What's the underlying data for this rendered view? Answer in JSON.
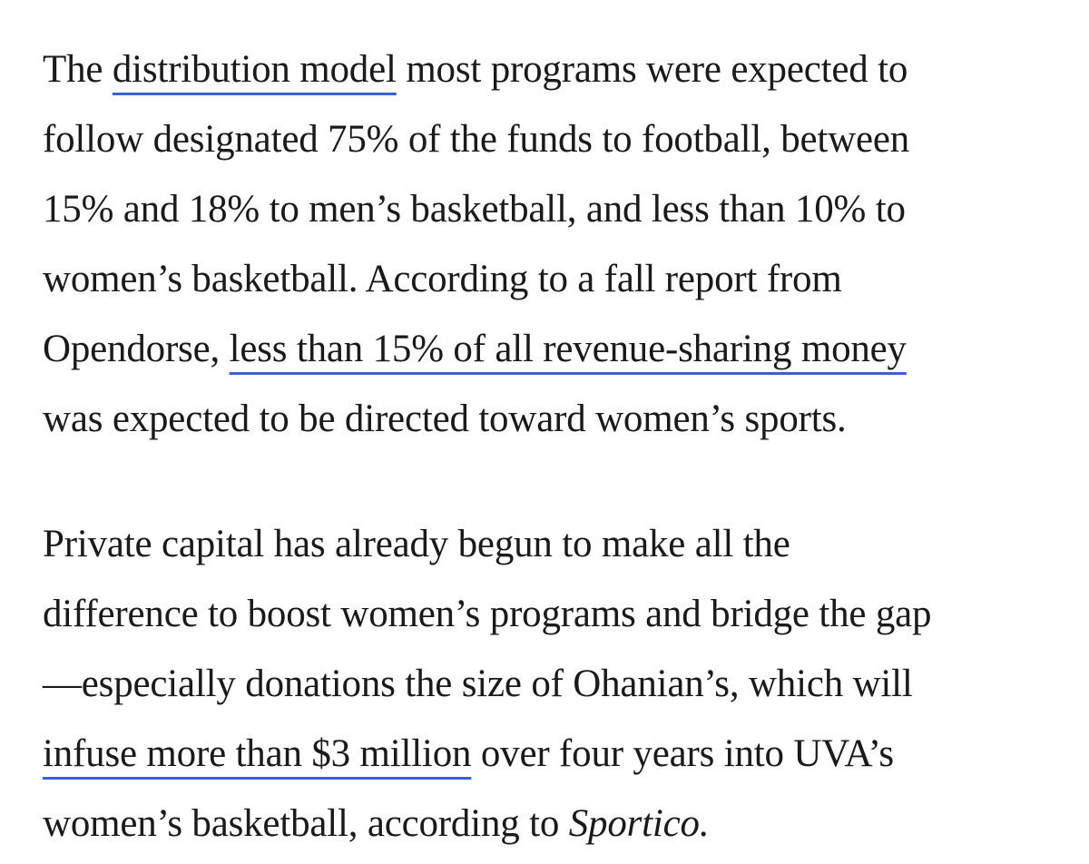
{
  "paragraphs": [
    {
      "lines": [
        [
          "The",
          "distribution model",
          "most programs were expected to"
        ],
        [
          "follow designated 75% of the funds to football, between"
        ],
        [
          "15% and 18% to men’s basketball, and less than 10% to"
        ],
        [
          "women’s basketball. According to a fall report from"
        ],
        [
          "Opendorse,",
          "less than 15% of all revenue-sharing money"
        ],
        [
          "was expected to be directed toward women’s sports."
        ]
      ]
    },
    {
      "lines": [
        [
          "Private capital has already begun to make all the"
        ],
        [
          "difference to boost women’s programs and bridge the gap"
        ],
        [
          "—especially donations the size of Ohanian’s, which will"
        ],
        [
          "infuse more than $3 million",
          "over four years into UVA’s"
        ],
        [
          "women’s basketball, according to",
          "Sportico."
        ]
      ]
    }
  ]
}
